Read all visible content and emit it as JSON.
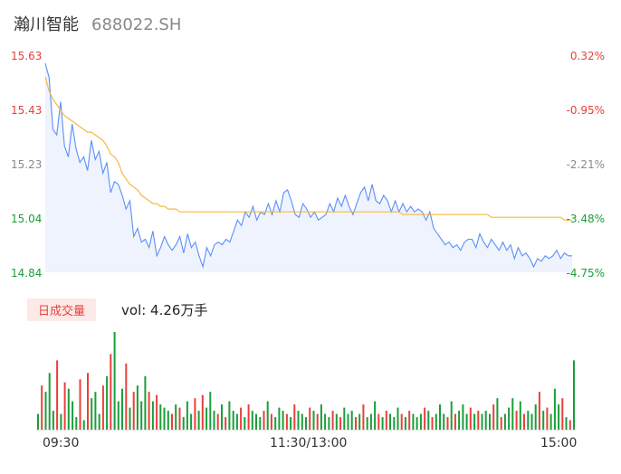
{
  "header": {
    "stock_name": "瀚川智能",
    "stock_code": "688022.SH"
  },
  "price_axis": {
    "labels": [
      "15.63",
      "15.43",
      "15.23",
      "15.04",
      "14.84"
    ],
    "pct_labels": [
      "0.32%",
      "-0.95%",
      "-2.21%",
      "-3.48%",
      "-4.75%"
    ]
  },
  "volume_panel": {
    "tag": "日成交量",
    "vol_text": "vol: 4.26万手"
  },
  "time_axis": {
    "labels": [
      "09:30",
      "11:30/13:00",
      "15:00"
    ]
  },
  "colors": {
    "price_line": "#5b8ff9",
    "avg_line": "#f5b942",
    "up": "#e8413a",
    "down": "#1a9e3a",
    "area_fill": "#eef3fd"
  },
  "chart_data": [
    {
      "type": "line",
      "title": "",
      "ylim": [
        14.84,
        15.63
      ],
      "x_labels": [
        "09:30",
        "11:30/13:00",
        "15:00"
      ],
      "series": [
        {
          "values": [
            15.6,
            15.55,
            15.36,
            15.34,
            15.46,
            15.3,
            15.26,
            15.38,
            15.29,
            15.24,
            15.26,
            15.21,
            15.32,
            15.25,
            15.28,
            15.2,
            15.24,
            15.13,
            15.17,
            15.16,
            15.12,
            15.07,
            15.1,
            14.97,
            15.0,
            14.95,
            14.96,
            14.93,
            14.99,
            14.9,
            14.93,
            14.97,
            14.94,
            14.92,
            14.94,
            14.97,
            14.91,
            14.98,
            14.93,
            14.95,
            14.9,
            14.86,
            14.93,
            14.9,
            14.94,
            14.95,
            14.94,
            14.96,
            14.95,
            14.99,
            15.03,
            15.01,
            15.06,
            15.04,
            15.08,
            15.03,
            15.06,
            15.05,
            15.09,
            15.05,
            15.1,
            15.06,
            15.13,
            15.14,
            15.1,
            15.05,
            15.04,
            15.09,
            15.07,
            15.04,
            15.06,
            15.03,
            15.04,
            15.05,
            15.09,
            15.06,
            15.11,
            15.08,
            15.12,
            15.08,
            15.05,
            15.09,
            15.13,
            15.15,
            15.1,
            15.16,
            15.1,
            15.09,
            15.12,
            15.1,
            15.06,
            15.1,
            15.06,
            15.09,
            15.06,
            15.08,
            15.06,
            15.07,
            15.06,
            15.03,
            15.06,
            15.0,
            14.98,
            14.96,
            14.94,
            14.95,
            14.93,
            14.94,
            14.92,
            14.95,
            14.96,
            14.96,
            14.93,
            14.98,
            14.95,
            14.93,
            14.96,
            14.94,
            14.92,
            14.95,
            14.92,
            14.94,
            14.89,
            14.93,
            14.9,
            14.91,
            14.89,
            14.86,
            14.89,
            14.88,
            14.9,
            14.89,
            14.9,
            14.92,
            14.89,
            14.91,
            14.9,
            14.9
          ]
        },
        {
          "values": [
            15.55,
            15.5,
            15.47,
            15.45,
            15.43,
            15.41,
            15.4,
            15.39,
            15.38,
            15.37,
            15.36,
            15.35,
            15.35,
            15.34,
            15.33,
            15.32,
            15.3,
            15.27,
            15.26,
            15.24,
            15.2,
            15.18,
            15.16,
            15.15,
            15.14,
            15.12,
            15.11,
            15.1,
            15.09,
            15.09,
            15.08,
            15.08,
            15.07,
            15.07,
            15.07,
            15.06,
            15.06,
            15.06,
            15.06,
            15.06,
            15.06,
            15.06,
            15.06,
            15.06,
            15.06,
            15.06,
            15.06,
            15.06,
            15.06,
            15.06,
            15.06,
            15.06,
            15.06,
            15.06,
            15.06,
            15.06,
            15.06,
            15.06,
            15.06,
            15.06,
            15.06,
            15.06,
            15.06,
            15.06,
            15.06,
            15.06,
            15.06,
            15.06,
            15.06,
            15.06,
            15.06,
            15.06,
            15.06,
            15.06,
            15.06,
            15.06,
            15.06,
            15.06,
            15.06,
            15.06,
            15.06,
            15.06,
            15.06,
            15.06,
            15.06,
            15.06,
            15.06,
            15.06,
            15.06,
            15.06,
            15.06,
            15.06,
            15.06,
            15.05,
            15.05,
            15.05,
            15.05,
            15.05,
            15.05,
            15.05,
            15.05,
            15.05,
            15.05,
            15.05,
            15.05,
            15.05,
            15.05,
            15.05,
            15.05,
            15.05,
            15.05,
            15.05,
            15.05,
            15.05,
            15.05,
            15.05,
            15.04,
            15.04,
            15.04,
            15.04,
            15.04,
            15.04,
            15.04,
            15.04,
            15.04,
            15.04,
            15.04,
            15.04,
            15.04,
            15.04,
            15.04,
            15.04,
            15.04,
            15.04,
            15.04,
            15.03,
            15.03,
            15.03
          ]
        }
      ]
    },
    {
      "type": "bar",
      "title": "",
      "values": [
        5,
        14,
        12,
        18,
        6,
        22,
        5,
        15,
        13,
        9,
        4,
        16,
        3,
        18,
        10,
        12,
        5,
        14,
        17,
        24,
        31,
        9,
        13,
        21,
        7,
        12,
        14,
        9,
        17,
        12,
        9,
        11,
        8,
        7,
        6,
        5,
        8,
        7,
        4,
        9,
        5,
        10,
        6,
        11,
        7,
        12,
        6,
        5,
        8,
        4,
        9,
        6,
        5,
        7,
        4,
        8,
        6,
        5,
        4,
        6,
        9,
        5,
        4,
        7,
        6,
        5,
        4,
        8,
        6,
        5,
        4,
        7,
        6,
        5,
        8,
        5,
        4,
        6,
        5,
        4,
        7,
        5,
        6,
        4,
        5,
        8,
        4,
        5,
        9,
        5,
        4,
        6,
        5,
        4,
        7,
        5,
        4,
        6,
        5,
        4,
        5,
        7,
        6,
        4,
        5,
        8,
        5,
        4,
        9,
        5,
        6,
        8,
        5,
        7,
        5,
        6,
        5,
        6,
        5,
        8,
        10,
        4,
        5,
        7,
        10,
        6,
        9,
        5,
        6,
        5,
        8,
        12,
        6,
        7,
        5,
        13,
        8,
        10,
        4,
        3,
        22
      ]
    }
  ]
}
